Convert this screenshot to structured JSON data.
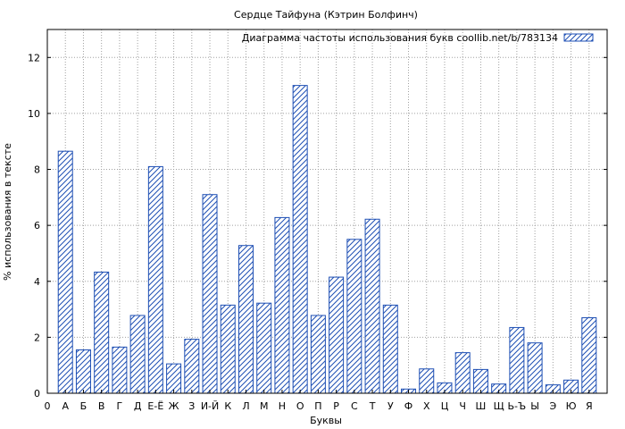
{
  "chart_data": {
    "type": "bar",
    "title": "Сердце Тайфуна (Кэтрин Болфинч)",
    "xlabel": "Буквы",
    "ylabel": "% использования в тексте",
    "legend": "Диаграмма частоты использования букв coollib.net/b/783134",
    "legend_position": "top-right",
    "grid": true,
    "ylim": [
      0,
      13
    ],
    "yticks": [
      "0",
      "2",
      "4",
      "6",
      "8",
      "10",
      "12"
    ],
    "ytick_values": [
      0,
      2,
      4,
      6,
      8,
      10,
      12
    ],
    "x_axis_start_label": "0",
    "categories": [
      "А",
      "Б",
      "В",
      "Г",
      "Д",
      "Е-Ё",
      "Ж",
      "З",
      "И-Й",
      "К",
      "Л",
      "М",
      "Н",
      "О",
      "П",
      "Р",
      "С",
      "Т",
      "У",
      "Ф",
      "Х",
      "Ц",
      "Ч",
      "Ш",
      "Щ",
      "Ь-Ъ",
      "Ы",
      "Э",
      "Ю",
      "Я"
    ],
    "values": [
      8.65,
      1.55,
      4.33,
      1.65,
      2.78,
      8.1,
      1.05,
      1.93,
      7.1,
      3.15,
      5.28,
      3.22,
      6.28,
      11.0,
      2.78,
      4.15,
      5.5,
      6.22,
      3.15,
      0.15,
      0.87,
      0.37,
      1.45,
      0.85,
      0.33,
      2.35,
      1.8,
      0.3,
      0.47,
      2.7
    ]
  },
  "colors": {
    "bar_stroke": "#1e4fb4",
    "hatch": "#1e4fb4",
    "grid": "#a0a0a0",
    "axis": "#000000"
  }
}
